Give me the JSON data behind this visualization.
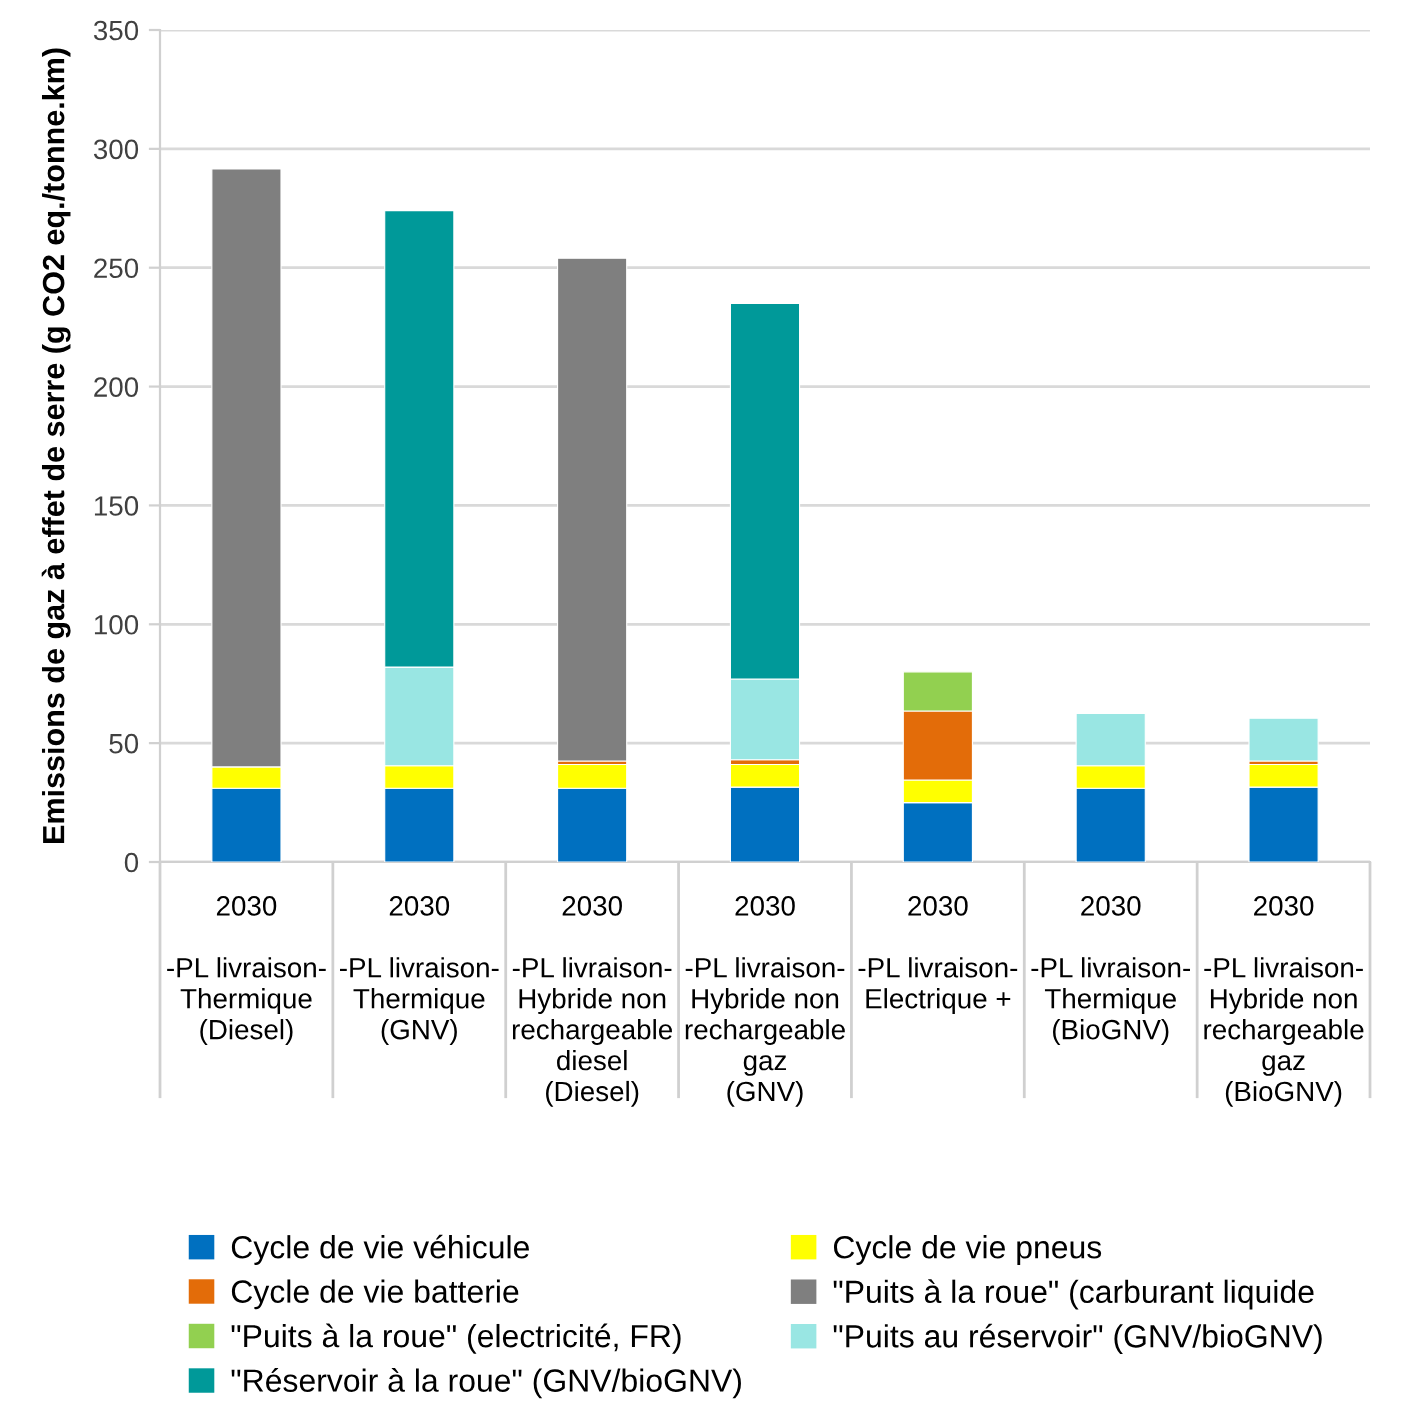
{
  "chart_data": {
    "type": "bar",
    "stacked": true,
    "ylabel": "Emissions de gaz à effet de serre (g CO2 eq./tonne.km)",
    "categories": [
      "2030\n\n-PL livraison-\nThermique\n(Diesel)",
      "2030\n\n-PL livraison-\nThermique\n(GNV)",
      "2030\n\n-PL livraison-\nHybride non\nrechargeable\ndiesel\n(Diesel)",
      "2030\n\n-PL livraison-\nHybride non\nrechargeable\ngaz\n(GNV)",
      "2030\n\n-PL livraison-\nElectrique +",
      "2030\n\n-PL livraison-\nThermique\n(BioGNV)",
      "2030\n\n-PL livraison-\nHybride non\nrechargeable\ngaz\n(BioGNV)"
    ],
    "series": [
      {
        "name": "Cycle de vie véhicule",
        "color": "#0070c0",
        "values": [
          31,
          31,
          31,
          31.5,
          25,
          31,
          31.5
        ]
      },
      {
        "name": "Cycle de vie pneus",
        "color": "#ffff00",
        "values": [
          9,
          9.5,
          10,
          9.5,
          9.5,
          9.5,
          9.5
        ]
      },
      {
        "name": "Cycle de vie batterie",
        "color": "#e36c09",
        "values": [
          null,
          null,
          1.5,
          2,
          29,
          null,
          1.5
        ]
      },
      {
        "name": "\"Puits à la roue\" (carburant liquide",
        "color": "#7f7f7f",
        "values": [
          251.5,
          null,
          211.5,
          null,
          null,
          null,
          null
        ]
      },
      {
        "name": "\"Puits à la roue\" (electricité, FR)",
        "color": "#92d050",
        "values": [
          null,
          null,
          null,
          null,
          16.5,
          null,
          null
        ]
      },
      {
        "name": "\"Puits au réservoir\" (GNV/bioGNV)",
        "color": "#99e6e3",
        "values": [
          null,
          41.5,
          null,
          34,
          null,
          22,
          18
        ]
      },
      {
        "name": "\"Réservoir à la roue\" (GNV/bioGNV)",
        "color": "#009999",
        "values": [
          null,
          192,
          null,
          158,
          null,
          null,
          null
        ]
      }
    ],
    "ylim": [
      0,
      350
    ],
    "yticks": [
      0,
      50,
      100,
      150,
      200,
      250,
      300,
      350
    ],
    "grid": "y",
    "legend": "bottom"
  }
}
